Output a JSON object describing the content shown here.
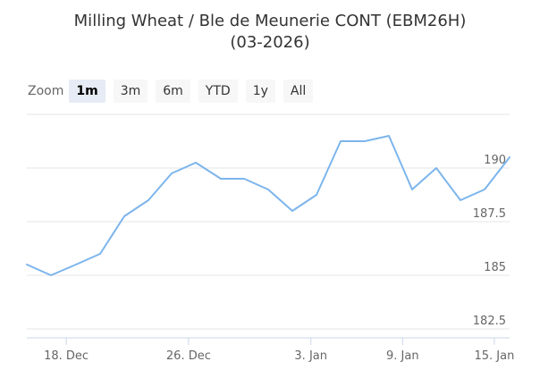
{
  "title": {
    "line1": "Milling Wheat / Ble de Meunerie CONT (EBM26H)",
    "line2": "(03-2026)"
  },
  "zoom": {
    "label": "Zoom",
    "buttons": [
      {
        "label": "1m",
        "active": true
      },
      {
        "label": "3m",
        "active": false
      },
      {
        "label": "6m",
        "active": false
      },
      {
        "label": "YTD",
        "active": false
      },
      {
        "label": "1y",
        "active": false
      },
      {
        "label": "All",
        "active": false
      }
    ]
  },
  "colors": {
    "line": "#7cb5ec",
    "grid": "#e6e6e6",
    "axis_text": "#666666"
  },
  "chart_data": {
    "type": "line",
    "title": "Milling Wheat / Ble de Meunerie CONT (EBM26H) (03-2026)",
    "xlabel": "",
    "ylabel": "",
    "grid": true,
    "x_tick_labels": [
      "18. Dec",
      "26. Dec",
      "3. Jan",
      "9. Jan",
      "15. Jan"
    ],
    "y_tick_labels": [
      "182.5",
      "185",
      "187.5",
      "190"
    ],
    "ylim": [
      182.5,
      192.5
    ],
    "series": [
      {
        "x": [
          "2025-12-16",
          "2025-12-17",
          "2025-12-18",
          "2025-12-19",
          "2025-12-22",
          "2025-12-23",
          "2025-12-24",
          "2025-12-25",
          "2025-12-26",
          "2025-12-29",
          "2025-12-30",
          "2025-12-31",
          "2026-01-01",
          "2026-01-02",
          "2026-01-05",
          "2026-01-06",
          "2026-01-07",
          "2026-01-08",
          "2026-01-09",
          "2026-01-12",
          "2026-01-13",
          "2026-01-14",
          "2026-01-15",
          "2026-01-16"
        ],
        "values": [
          185.5,
          185.0,
          185.5,
          186.0,
          187.75,
          188.5,
          189.75,
          190.25,
          189.5,
          189.5,
          189.0,
          188.0,
          188.75,
          191.25,
          191.25,
          191.5,
          189.0,
          190.0,
          188.5,
          189.0,
          190.5,
          null,
          null,
          null
        ]
      }
    ]
  }
}
